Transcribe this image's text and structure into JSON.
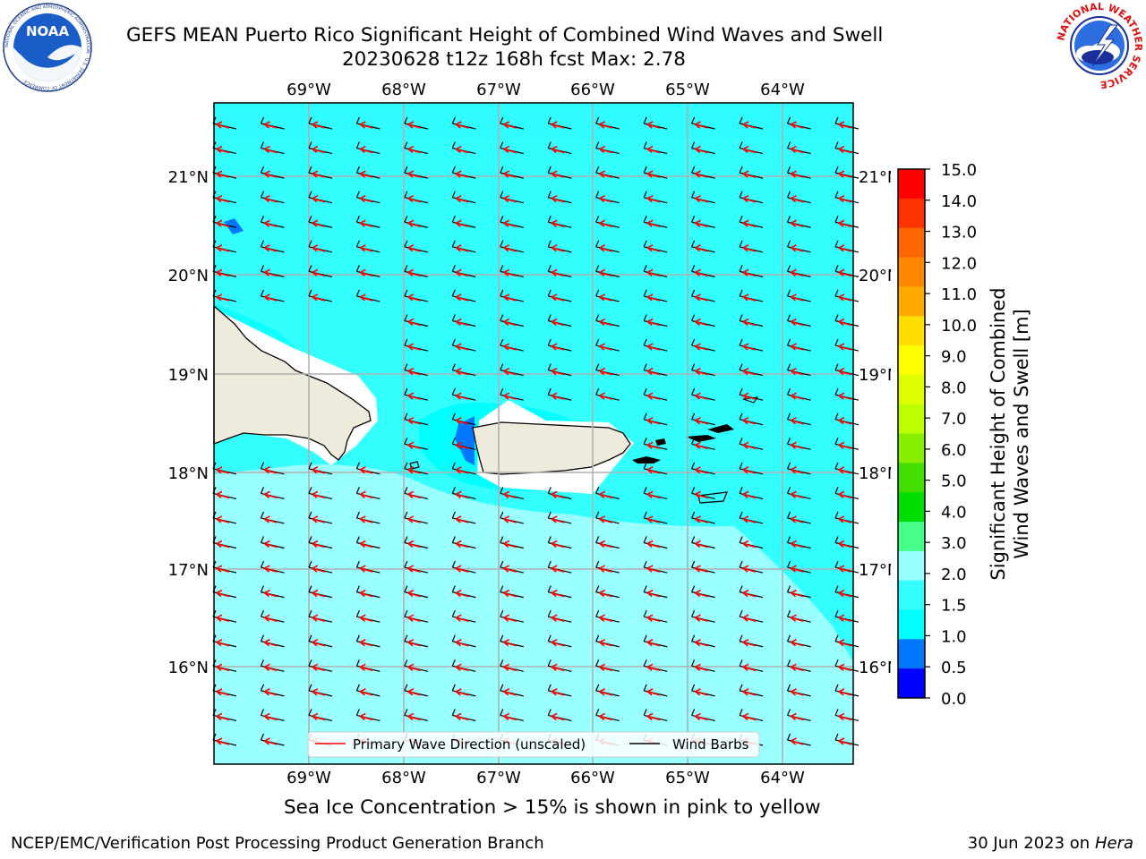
{
  "header": {
    "title_line1": "GEFS MEAN Puerto Rico Significant Height of Combined Wind Waves and Swell",
    "title_line2": "20230628 t12z 168h fcst   Max: 2.78"
  },
  "logos": {
    "noaa_text": "NOAA",
    "noaa_ring_text": "NATIONAL OCEANIC AND ATMOSPHERIC ADMINISTRATION · U.S. DEPARTMENT OF COMMERCE",
    "nws_ring_text": "NATIONAL WEATHER SERVICE"
  },
  "map": {
    "lon_labels": [
      "69°W",
      "68°W",
      "67°W",
      "66°W",
      "65°W",
      "64°W"
    ],
    "lat_labels": [
      "21°N",
      "20°N",
      "19°N",
      "18°N",
      "17°N",
      "16°N"
    ],
    "legend": {
      "wave_label": "Primary Wave Direction (unscaled)",
      "barb_label": "Wind Barbs"
    },
    "colors": {
      "ocean_main": "#33ffff",
      "ocean_light": "#99ffff",
      "ocean_cyan": "#00ffff",
      "ocean_deep": "#0077ff",
      "land": "#efebdc",
      "wave_arrow": "#ff0000",
      "barb": "#000000"
    }
  },
  "colorbar": {
    "label_line1": "Significant Height of Combined",
    "label_line2": "Wind Waves and Swell [m]",
    "ticks": [
      "15.0",
      "14.0",
      "13.0",
      "12.0",
      "11.0",
      "10.0",
      "9.0",
      "8.0",
      "7.0",
      "6.0",
      "5.0",
      "4.0",
      "3.0",
      "2.0",
      "1.5",
      "1.0",
      "0.5",
      "0.0"
    ],
    "colors_top_to_bottom": [
      "#ff0000",
      "#ff3300",
      "#ff6600",
      "#ff8800",
      "#ffaa00",
      "#ffdd00",
      "#ffff00",
      "#ddff00",
      "#bbff00",
      "#88ee00",
      "#44dd00",
      "#00dd00",
      "#44ff88",
      "#99ffff",
      "#33ffff",
      "#00ffff",
      "#0077ff",
      "#0000ff"
    ]
  },
  "notes": {
    "sea_ice": "Sea Ice Concentration > 15% is shown in pink to yellow",
    "footer_left": "NCEP/EMC/Verification Post Processing Product Generation Branch",
    "footer_right_date": "30 Jun 2023 on",
    "footer_right_host": "Hera"
  }
}
